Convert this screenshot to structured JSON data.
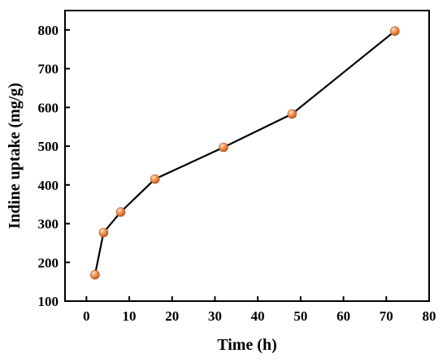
{
  "chart_data": {
    "type": "line",
    "title": "",
    "xlabel": "Time (h)",
    "ylabel": "Indine uptake (mg/g)",
    "xlim": [
      -5,
      80
    ],
    "ylim": [
      100,
      850
    ],
    "x_ticks": [
      0,
      10,
      20,
      30,
      40,
      50,
      60,
      70,
      80
    ],
    "y_ticks": [
      100,
      200,
      300,
      400,
      500,
      600,
      700,
      800
    ],
    "grid": false,
    "legend": "none",
    "series": [
      {
        "x": [
          2,
          4,
          8,
          16,
          32,
          48,
          72
        ],
        "y": [
          168,
          277,
          330,
          415,
          497,
          583,
          797
        ],
        "line_color": "#000000",
        "marker_color": "#e8854a",
        "marker": "circle"
      }
    ]
  }
}
